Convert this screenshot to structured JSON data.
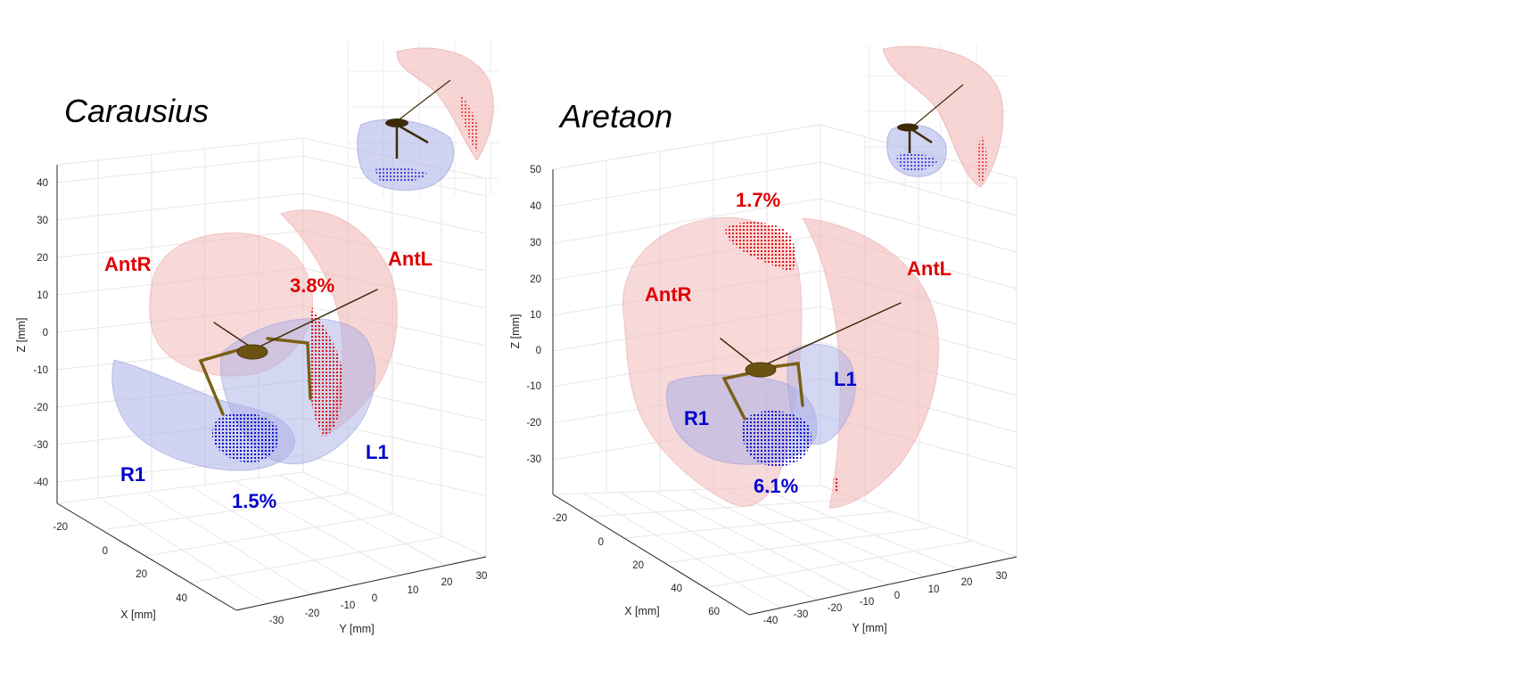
{
  "colors": {
    "red_region": "#e00000",
    "blue_region": "#0000cc",
    "red_fill": "#f2b9b9",
    "blue_fill": "#a9afe6",
    "leg": "#8b6d1a",
    "axis": "#262626",
    "grid": "#e6e6e6"
  },
  "panels": [
    {
      "title": "Carausius",
      "z_label": "Z [mm]",
      "x_label": "X [mm]",
      "y_label": "Y [mm]",
      "z_ticks": [
        "40",
        "30",
        "20",
        "10",
        "0",
        "-10",
        "-20",
        "-30",
        "-40"
      ],
      "x_ticks": [
        "-20",
        "0",
        "20",
        "40"
      ],
      "y_ticks": [
        "-30",
        "-20",
        "-10",
        "0",
        "10",
        "20",
        "30"
      ],
      "regions": {
        "antr": "AntR",
        "antl": "AntL",
        "r1": "R1",
        "l1": "L1"
      },
      "percentages": {
        "red": "3.8%",
        "blue": "1.5%"
      }
    },
    {
      "title": "Aretaon",
      "z_label": "Z [mm]",
      "x_label": "X [mm]",
      "y_label": "Y [mm]",
      "z_ticks": [
        "50",
        "40",
        "30",
        "20",
        "10",
        "0",
        "-10",
        "-20",
        "-30"
      ],
      "x_ticks": [
        "-20",
        "0",
        "20",
        "40",
        "60"
      ],
      "y_ticks": [
        "-40",
        "-30",
        "-20",
        "-10",
        "0",
        "10",
        "20",
        "30"
      ],
      "regions": {
        "antr": "AntR",
        "antl": "AntL",
        "r1": "R1",
        "l1": "L1"
      },
      "percentages": {
        "red": "1.7%",
        "blue": "6.1%"
      }
    }
  ]
}
